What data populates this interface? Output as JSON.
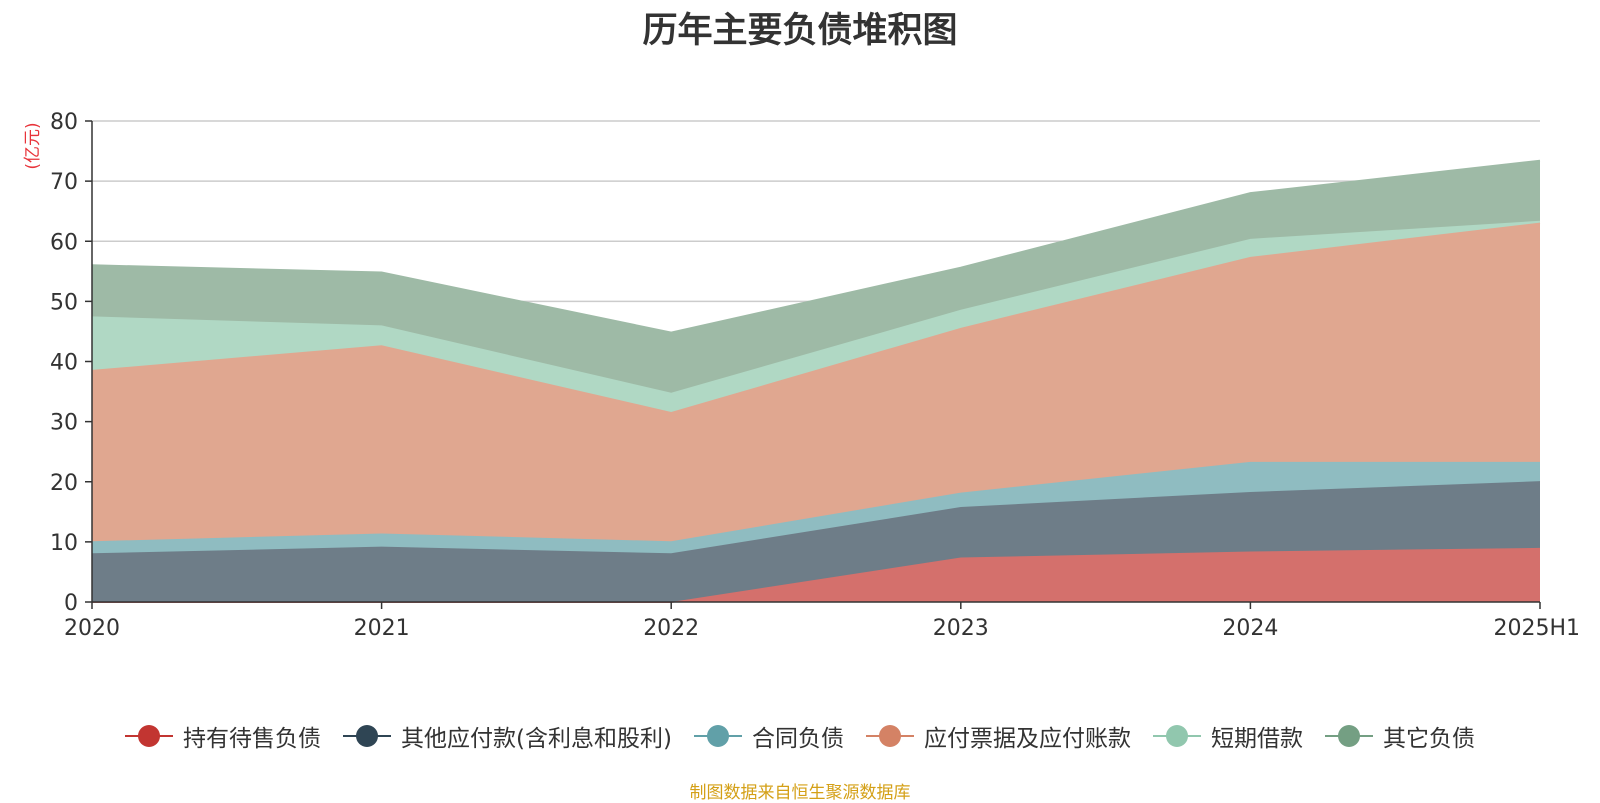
{
  "title": "历年主要负债堆积图",
  "source_note": "制图数据来自恒生聚源数据库",
  "chart_data": {
    "type": "area",
    "stacked": true,
    "title": "历年主要负债堆积图",
    "unit": "(亿元)",
    "categories": [
      "2020",
      "2021",
      "2022",
      "2023",
      "2024",
      "2025H1"
    ],
    "ylim": [
      0,
      80
    ],
    "yticks": [
      0,
      10,
      20,
      30,
      40,
      50,
      60,
      70,
      80
    ],
    "grid": true,
    "legend_position": "bottom",
    "series": [
      {
        "name": "持有待售负债",
        "color": "#c23531",
        "fill": "#d4706c",
        "values": [
          0,
          0,
          0,
          7.4,
          8.4,
          9.0
        ]
      },
      {
        "name": "其他应付款(含利息和股利)",
        "color": "#2f4554",
        "fill": "#6e7d88",
        "values": [
          8.1,
          9.2,
          8.1,
          8.4,
          9.9,
          11.1
        ]
      },
      {
        "name": "合同负债",
        "color": "#61a0a8",
        "fill": "#8fbcc1",
        "values": [
          2.0,
          2.2,
          2.0,
          2.4,
          5.0,
          3.2
        ]
      },
      {
        "name": "应付票据及应付账款",
        "color": "#d48265",
        "fill": "#e0a790",
        "values": [
          28.5,
          31.3,
          21.5,
          27.4,
          34.1,
          39.8
        ]
      },
      {
        "name": "短期借款",
        "color": "#91c7ae",
        "fill": "#b0d8c4",
        "values": [
          8.9,
          3.3,
          3.2,
          3.0,
          3.0,
          0.3
        ]
      },
      {
        "name": "其它负债",
        "color": "#749f83",
        "fill": "#9ebaa6",
        "values": [
          8.5,
          8.8,
          10.0,
          7.0,
          7.6,
          10.0
        ]
      }
    ]
  }
}
